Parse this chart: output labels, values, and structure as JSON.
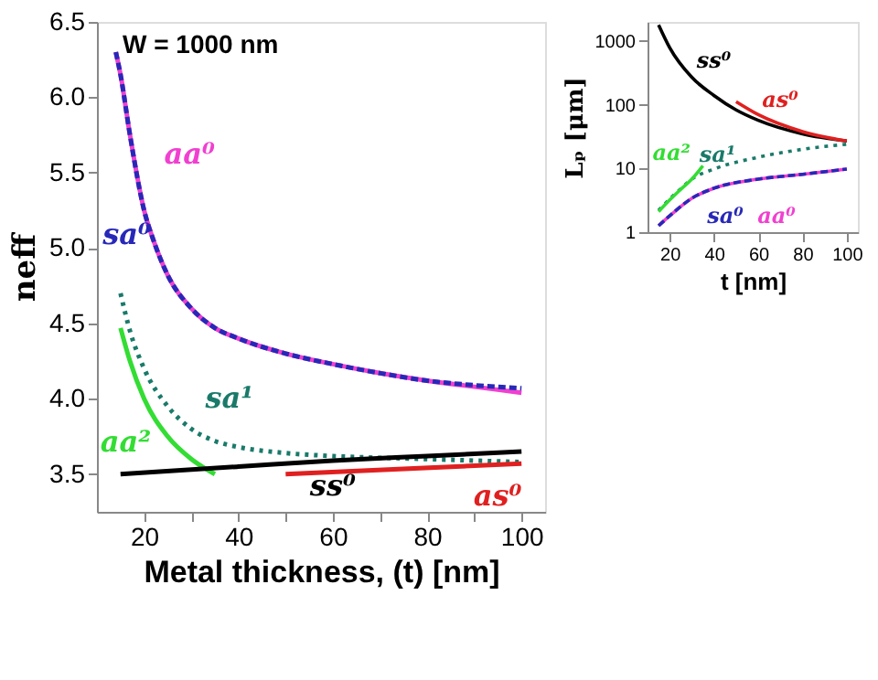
{
  "chart_data": [
    {
      "type": "line",
      "xlabel": "Metal thickness, (t) [nm]",
      "ylabel": "neff",
      "annotations": [
        "W = 1000 nm"
      ],
      "xlim": [
        10,
        105
      ],
      "ylim": [
        3.25,
        6.5
      ],
      "xticks": [
        20,
        {
          "value": 30,
          "label": null
        },
        40,
        {
          "value": 50,
          "label": null
        },
        60,
        {
          "value": 70,
          "label": null
        },
        80,
        {
          "value": 90,
          "label": null
        },
        100
      ],
      "yticks": [
        3.5,
        {
          "value": 4,
          "label": "4.0"
        },
        4.5,
        {
          "value": 5,
          "label": "5.0"
        },
        5.5,
        {
          "value": 6,
          "label": "6.0"
        },
        6.5
      ],
      "grid": false,
      "series": [
        {
          "name": "aa⁰",
          "color": "#f040d0",
          "line_style": "solid",
          "x": [
            14,
            15,
            17,
            20,
            22,
            25,
            30,
            35,
            40,
            50,
            60,
            70,
            80,
            90,
            100
          ],
          "values": [
            6.3,
            6.15,
            5.75,
            5.25,
            5.05,
            4.82,
            4.6,
            4.47,
            4.4,
            4.3,
            4.23,
            4.17,
            4.12,
            4.08,
            4.04
          ]
        },
        {
          "name": "sa⁰",
          "color": "#2828b8",
          "line_style": "dashed",
          "x": [
            14,
            15,
            17,
            20,
            22,
            25,
            30,
            35,
            40,
            50,
            60,
            70,
            80,
            90,
            100
          ],
          "values": [
            6.3,
            6.15,
            5.75,
            5.25,
            5.05,
            4.82,
            4.6,
            4.47,
            4.4,
            4.3,
            4.23,
            4.17,
            4.12,
            4.09,
            4.07
          ]
        },
        {
          "name": "sa¹",
          "color": "#1a7a6a",
          "line_style": "dotted",
          "x": [
            15,
            17,
            20,
            25,
            30,
            35,
            40,
            50,
            60,
            80,
            100
          ],
          "values": [
            4.7,
            4.45,
            4.2,
            3.95,
            3.8,
            3.72,
            3.68,
            3.64,
            3.62,
            3.6,
            3.58
          ]
        },
        {
          "name": "aa²",
          "color": "#33dd33",
          "line_style": "solid",
          "x": [
            15,
            17,
            20,
            25,
            30,
            35
          ],
          "values": [
            4.47,
            4.25,
            4.0,
            3.75,
            3.6,
            3.5
          ]
        },
        {
          "name": "ss⁰",
          "color": "#000000",
          "line_style": "solid",
          "x": [
            15,
            40,
            60,
            80,
            100
          ],
          "values": [
            3.5,
            3.55,
            3.59,
            3.62,
            3.65
          ]
        },
        {
          "name": "as⁰",
          "color": "#e02020",
          "line_style": "solid",
          "x": [
            50,
            100
          ],
          "values": [
            3.5,
            3.57
          ]
        }
      ]
    },
    {
      "type": "line",
      "xlabel": "t [nm]",
      "ylabel": "Lₚ [μm]",
      "log": "y",
      "xlim": [
        10,
        105
      ],
      "ylim": [
        1,
        2000
      ],
      "xticks": [
        20,
        40,
        60,
        80,
        100
      ],
      "yticks": [
        1,
        10,
        100,
        1000
      ],
      "grid": false,
      "series": [
        {
          "name": "ss⁰",
          "color": "#000000",
          "line_style": "solid",
          "x": [
            15,
            20,
            30,
            40,
            50,
            60,
            80,
            100
          ],
          "values": [
            1800,
            790,
            270,
            140,
            83,
            57,
            35,
            27
          ]
        },
        {
          "name": "as⁰",
          "color": "#e02020",
          "line_style": "solid",
          "x": [
            50,
            60,
            80,
            100
          ],
          "values": [
            112,
            70,
            38,
            27
          ]
        },
        {
          "name": "sa¹",
          "color": "#1a7a6a",
          "line_style": "dotted",
          "x": [
            15,
            20,
            25,
            30,
            40,
            60,
            80,
            100
          ],
          "values": [
            2.2,
            3.3,
            4.8,
            6.8,
            9.8,
            15,
            20,
            24
          ]
        },
        {
          "name": "aa²",
          "color": "#33dd33",
          "line_style": "solid",
          "x": [
            15,
            20,
            25,
            30,
            35
          ],
          "values": [
            2.1,
            3.2,
            4.7,
            6.8,
            11
          ]
        },
        {
          "name": "aa⁰",
          "color": "#f040d0",
          "line_style": "solid",
          "x": [
            15,
            20,
            30,
            40,
            60,
            80,
            100
          ],
          "values": [
            1.26,
            1.8,
            3.4,
            4.9,
            6.8,
            8.1,
            9.8
          ]
        },
        {
          "name": "sa⁰",
          "color": "#2828b8",
          "line_style": "dashed",
          "x": [
            15,
            20,
            30,
            40,
            60,
            80,
            100
          ],
          "values": [
            1.26,
            1.8,
            3.4,
            4.9,
            6.8,
            8.1,
            9.8
          ]
        }
      ]
    }
  ]
}
